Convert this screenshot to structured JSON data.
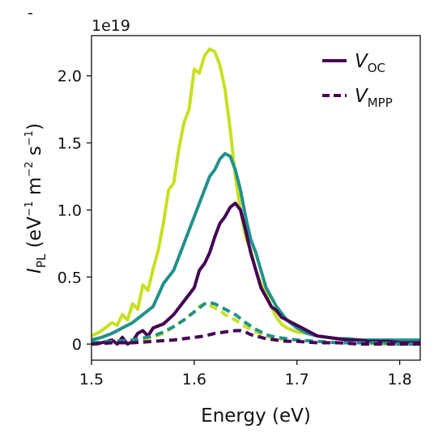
{
  "chart_data": {
    "type": "line",
    "xlabel": "Energy (eV)",
    "ylabel": {
      "base": "I",
      "base_sub": "PL",
      "units_open": " (eV",
      "sup1": "−1",
      "mid": " m",
      "sup2": "−2",
      "end": " s",
      "sup3": "−1",
      "close": ")"
    },
    "offset_text": "1e19",
    "corner_mark": "-",
    "xlim": [
      1.5,
      1.82
    ],
    "ylim": [
      -0.12,
      2.3
    ],
    "y_scale_factor": 1e+19,
    "x_ticks": [
      1.5,
      1.6,
      1.7,
      1.8
    ],
    "x_tick_labels": [
      "1.5",
      "1.6",
      "1.7",
      "1.8"
    ],
    "y_ticks": [
      0,
      0.5,
      1.0,
      1.5,
      2.0
    ],
    "y_tick_labels": [
      "0",
      "0.5",
      "1.0",
      "1.5",
      "2.0"
    ],
    "grid": false,
    "legend": {
      "placement": "top-right",
      "entries": [
        {
          "main": "V",
          "sub": "OC",
          "style": "solid",
          "color": "#440154"
        },
        {
          "main": "V",
          "sub": "MPP",
          "style": "dashed",
          "color": "#440154"
        }
      ]
    },
    "series": [
      {
        "style": "solid",
        "color": "#c8e020",
        "x": [
          1.5,
          1.51,
          1.52,
          1.525,
          1.53,
          1.535,
          1.54,
          1.545,
          1.55,
          1.555,
          1.56,
          1.565,
          1.57,
          1.575,
          1.58,
          1.585,
          1.59,
          1.595,
          1.6,
          1.605,
          1.61,
          1.615,
          1.62,
          1.625,
          1.63,
          1.635,
          1.64,
          1.645,
          1.65,
          1.655,
          1.66,
          1.665,
          1.67,
          1.675,
          1.68,
          1.685,
          1.69,
          1.7,
          1.71,
          1.72,
          1.73,
          1.74,
          1.75,
          1.76,
          1.77,
          1.78,
          1.79,
          1.8,
          1.82
        ],
        "y": [
          0.06,
          0.1,
          0.16,
          0.14,
          0.22,
          0.18,
          0.3,
          0.26,
          0.44,
          0.4,
          0.56,
          0.7,
          0.9,
          1.15,
          1.2,
          1.45,
          1.65,
          1.75,
          2.05,
          2.02,
          2.15,
          2.2,
          2.18,
          2.08,
          1.9,
          1.6,
          1.25,
          1.0,
          0.8,
          0.7,
          0.55,
          0.45,
          0.38,
          0.28,
          0.2,
          0.15,
          0.12,
          0.09,
          0.08,
          0.06,
          0.05,
          0.04,
          0.04,
          0.03,
          0.03,
          0.02,
          0.02,
          0.02,
          0.02
        ]
      },
      {
        "style": "solid",
        "color": "#21918c",
        "x": [
          1.5,
          1.51,
          1.52,
          1.53,
          1.54,
          1.55,
          1.56,
          1.57,
          1.58,
          1.59,
          1.6,
          1.61,
          1.615,
          1.62,
          1.625,
          1.63,
          1.635,
          1.64,
          1.645,
          1.65,
          1.655,
          1.66,
          1.665,
          1.67,
          1.675,
          1.68,
          1.69,
          1.7,
          1.71,
          1.72,
          1.73,
          1.74,
          1.75,
          1.76,
          1.77,
          1.78,
          1.79,
          1.8,
          1.82
        ],
        "y": [
          0.03,
          0.05,
          0.08,
          0.12,
          0.16,
          0.22,
          0.28,
          0.45,
          0.55,
          0.75,
          0.95,
          1.15,
          1.25,
          1.3,
          1.38,
          1.42,
          1.4,
          1.3,
          1.15,
          0.95,
          0.78,
          0.68,
          0.55,
          0.42,
          0.35,
          0.28,
          0.18,
          0.12,
          0.08,
          0.06,
          0.05,
          0.04,
          0.04,
          0.03,
          0.03,
          0.03,
          0.03,
          0.03,
          0.03
        ]
      },
      {
        "style": "solid",
        "color": "#440154",
        "x": [
          1.5,
          1.51,
          1.52,
          1.525,
          1.53,
          1.535,
          1.54,
          1.545,
          1.55,
          1.555,
          1.56,
          1.57,
          1.58,
          1.59,
          1.6,
          1.605,
          1.61,
          1.615,
          1.62,
          1.625,
          1.63,
          1.635,
          1.64,
          1.645,
          1.65,
          1.655,
          1.66,
          1.665,
          1.67,
          1.675,
          1.68,
          1.685,
          1.69,
          1.695,
          1.7,
          1.705,
          1.71,
          1.715,
          1.72,
          1.73,
          1.74,
          1.75,
          1.76,
          1.77,
          1.78,
          1.79,
          1.8,
          1.82
        ],
        "y": [
          0.0,
          0.01,
          0.03,
          0.0,
          0.05,
          0.0,
          0.02,
          0.08,
          0.1,
          0.06,
          0.12,
          0.15,
          0.22,
          0.32,
          0.42,
          0.55,
          0.6,
          0.68,
          0.8,
          0.9,
          0.95,
          1.02,
          1.05,
          1.0,
          0.85,
          0.68,
          0.55,
          0.42,
          0.35,
          0.28,
          0.25,
          0.2,
          0.18,
          0.16,
          0.14,
          0.12,
          0.1,
          0.08,
          0.06,
          0.05,
          0.04,
          0.03,
          0.03,
          0.02,
          0.02,
          0.02,
          0.01,
          0.01
        ]
      },
      {
        "style": "dashed",
        "color": "#c8e020",
        "x": [
          1.5,
          1.52,
          1.54,
          1.56,
          1.57,
          1.58,
          1.59,
          1.6,
          1.605,
          1.61,
          1.615,
          1.62,
          1.625,
          1.63,
          1.64,
          1.65,
          1.66,
          1.67,
          1.68,
          1.7,
          1.72,
          1.74,
          1.76,
          1.78,
          1.8,
          1.82
        ],
        "y": [
          0.0,
          0.01,
          0.02,
          0.05,
          0.08,
          0.13,
          0.18,
          0.24,
          0.28,
          0.3,
          0.29,
          0.27,
          0.25,
          0.22,
          0.18,
          0.13,
          0.09,
          0.06,
          0.04,
          0.03,
          0.02,
          0.01,
          0.01,
          0.0,
          0.0,
          0.0
        ]
      },
      {
        "style": "dashed",
        "color": "#21918c",
        "x": [
          1.5,
          1.52,
          1.54,
          1.56,
          1.57,
          1.58,
          1.59,
          1.6,
          1.605,
          1.61,
          1.615,
          1.62,
          1.625,
          1.63,
          1.64,
          1.65,
          1.66,
          1.67,
          1.68,
          1.7,
          1.72,
          1.74,
          1.76,
          1.78,
          1.8,
          1.82
        ],
        "y": [
          0.01,
          0.02,
          0.03,
          0.06,
          0.09,
          0.13,
          0.18,
          0.24,
          0.27,
          0.3,
          0.31,
          0.3,
          0.28,
          0.26,
          0.22,
          0.16,
          0.11,
          0.07,
          0.05,
          0.03,
          0.02,
          0.01,
          0.01,
          0.01,
          0.0,
          0.0
        ]
      },
      {
        "style": "dashed",
        "color": "#440154",
        "x": [
          1.5,
          1.52,
          1.54,
          1.56,
          1.58,
          1.6,
          1.61,
          1.62,
          1.63,
          1.64,
          1.645,
          1.65,
          1.655,
          1.66,
          1.665,
          1.67,
          1.68,
          1.69,
          1.7,
          1.72,
          1.74,
          1.76,
          1.78,
          1.8,
          1.82
        ],
        "y": [
          0.0,
          0.01,
          0.01,
          0.02,
          0.03,
          0.05,
          0.06,
          0.08,
          0.09,
          0.1,
          0.1,
          0.09,
          0.07,
          0.06,
          0.05,
          0.04,
          0.03,
          0.02,
          0.02,
          0.01,
          0.01,
          0.0,
          0.0,
          0.0,
          0.0
        ]
      }
    ]
  }
}
